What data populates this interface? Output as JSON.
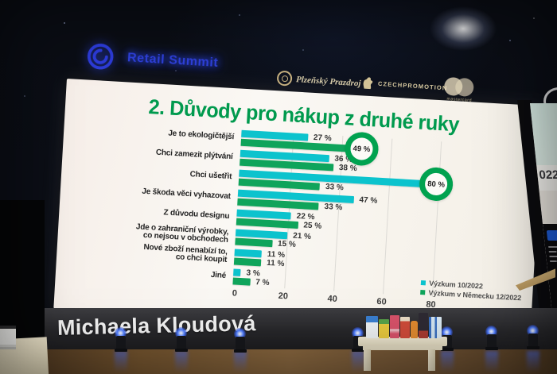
{
  "stage": {
    "event_logo": {
      "text": "Retail Summit"
    },
    "sponsors": [
      {
        "name": "Plzeňský Prazdroj"
      },
      {
        "name": "CZECHPROMOTION"
      },
      {
        "name": "mastercard"
      }
    ],
    "speaker_banner": {
      "name": "Michaela Kloudová"
    },
    "side_screen": {
      "visible_text": "022"
    }
  },
  "chart_data": {
    "type": "bar",
    "orientation": "horizontal",
    "title": "2. Důvody pro nákup z druhé ruky",
    "title_color": "#009a4e",
    "categories": [
      "Je to ekologičtější",
      "Chci zamezit plýtvání",
      "Chci ušetřit",
      "Je škoda věci vyhazovat",
      "Z důvodu designu",
      "Jde o zahraniční výrobky,\nco nejsou v obchodech",
      "Nové zboží nenabízí to,\nco chci koupit",
      "Jiné"
    ],
    "series": [
      {
        "name": "Výzkum 10/2022",
        "color": "#0cc3cd",
        "values": [
          27,
          36,
          80,
          47,
          22,
          21,
          11,
          3
        ]
      },
      {
        "name": "Výzkum v Německu 12/2022",
        "color": "#0fa45b",
        "values": [
          49,
          38,
          33,
          33,
          25,
          15,
          11,
          7
        ]
      }
    ],
    "value_suffix": " %",
    "x_ticks": [
      "0",
      "20",
      "40",
      "60",
      "80"
    ],
    "xlim": [
      0,
      105
    ],
    "grid": true,
    "legend_position": "bottom-right",
    "highlights": [
      {
        "series_index": 1,
        "category_index": 0,
        "note": "circled value 49 %"
      },
      {
        "series_index": 0,
        "category_index": 2,
        "note": "circled value 80 %"
      }
    ],
    "highlight_ring_color": "#00a24f"
  },
  "colors": {
    "screen_bg": "#f7f3ee",
    "backdrop": "#0a0d14",
    "brand_blue": "#2c3bd8",
    "sponsor_gold": "#dccfa8",
    "banner_bg": "#29292c",
    "banner_text": "#f4f4f4",
    "floor_brown": "#6f5233",
    "light_glow_blue": "#4a79ff"
  }
}
